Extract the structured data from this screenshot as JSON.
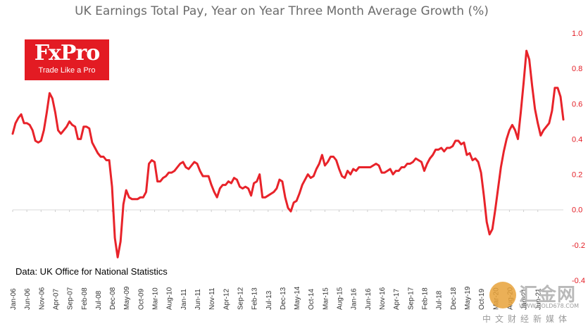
{
  "chart_data": {
    "type": "line",
    "title": "UK Earnings Total Pay, Year on Year Three Month Average Growth (%)",
    "xlabel": "",
    "ylabel": "",
    "ylim": [
      -0.4,
      1.0
    ],
    "yticks": [
      "1.0",
      "0.8",
      "0.6",
      "0.4",
      "0.2",
      "0.0",
      "-0.2",
      "-0.4"
    ],
    "ytick_values": [
      1.0,
      0.8,
      0.6,
      0.4,
      0.2,
      0.0,
      -0.2,
      -0.4
    ],
    "ytick_color": "#e31b23",
    "y_axis_side": "right",
    "grid": false,
    "legend": "none",
    "series_color": "#e8232a",
    "xticks": [
      "Jan-06",
      "Jun-06",
      "Nov-06",
      "Apr-07",
      "Sep-07",
      "Feb-08",
      "Jul-08",
      "Dec-08",
      "May-09",
      "Oct-09",
      "Mar-10",
      "Aug-10",
      "Jan-11",
      "Jun-11",
      "Nov-11",
      "Apr-12",
      "Sep-12",
      "Feb-13",
      "Jul-13",
      "Dec-13",
      "May-14",
      "Oct-14",
      "Mar-15",
      "Aug-15",
      "Jan-16",
      "Jun-16",
      "Nov-16",
      "Apr-17",
      "Sep-17",
      "Feb-18",
      "Jul-18",
      "Dec-18",
      "May-19",
      "Oct-19",
      "Mar-20",
      "Aug-20",
      "Jan-21",
      "Jun-21"
    ],
    "series": [
      {
        "x_start": "Jan-06",
        "frequency": "monthly",
        "values": [
          0.43,
          0.49,
          0.52,
          0.54,
          0.49,
          0.49,
          0.48,
          0.45,
          0.39,
          0.38,
          0.39,
          0.45,
          0.55,
          0.66,
          0.63,
          0.55,
          0.45,
          0.43,
          0.45,
          0.47,
          0.5,
          0.48,
          0.47,
          0.4,
          0.4,
          0.47,
          0.47,
          0.46,
          0.38,
          0.35,
          0.32,
          0.3,
          0.3,
          0.28,
          0.28,
          0.13,
          -0.16,
          -0.27,
          -0.18,
          0.03,
          0.11,
          0.07,
          0.06,
          0.06,
          0.06,
          0.07,
          0.07,
          0.1,
          0.26,
          0.28,
          0.27,
          0.16,
          0.16,
          0.18,
          0.19,
          0.21,
          0.21,
          0.22,
          0.24,
          0.26,
          0.27,
          0.24,
          0.23,
          0.25,
          0.27,
          0.26,
          0.22,
          0.19,
          0.19,
          0.19,
          0.14,
          0.1,
          0.07,
          0.12,
          0.14,
          0.14,
          0.16,
          0.15,
          0.18,
          0.17,
          0.13,
          0.12,
          0.13,
          0.12,
          0.08,
          0.15,
          0.16,
          0.2,
          0.07,
          0.07,
          0.08,
          0.09,
          0.1,
          0.12,
          0.17,
          0.16,
          0.07,
          0.01,
          -0.01,
          0.04,
          0.05,
          0.09,
          0.14,
          0.17,
          0.2,
          0.18,
          0.19,
          0.23,
          0.26,
          0.31,
          0.25,
          0.27,
          0.3,
          0.3,
          0.28,
          0.23,
          0.19,
          0.18,
          0.22,
          0.2,
          0.23,
          0.22,
          0.24,
          0.24,
          0.24,
          0.24,
          0.24,
          0.25,
          0.26,
          0.25,
          0.21,
          0.21,
          0.22,
          0.23,
          0.2,
          0.22,
          0.22,
          0.24,
          0.24,
          0.26,
          0.26,
          0.27,
          0.29,
          0.28,
          0.27,
          0.22,
          0.26,
          0.29,
          0.31,
          0.34,
          0.34,
          0.35,
          0.33,
          0.35,
          0.35,
          0.36,
          0.39,
          0.39,
          0.37,
          0.38,
          0.31,
          0.32,
          0.28,
          0.29,
          0.27,
          0.21,
          0.08,
          -0.07,
          -0.14,
          -0.11,
          0.0,
          0.12,
          0.24,
          0.33,
          0.4,
          0.45,
          0.48,
          0.45,
          0.4,
          0.55,
          0.72,
          0.9,
          0.85,
          0.7,
          0.57,
          0.49,
          0.42,
          0.45,
          0.47,
          0.49,
          0.56,
          0.69,
          0.69,
          0.64,
          0.51
        ]
      }
    ]
  },
  "logo": {
    "name": "FxPro",
    "tagline": "Trade Like a Pro"
  },
  "source_note": "Data: UK Office for National Statistics",
  "watermark": {
    "name": "汇金网",
    "domain": "WWW.GOLD678.COM",
    "sub": "中文财经新媒体"
  }
}
